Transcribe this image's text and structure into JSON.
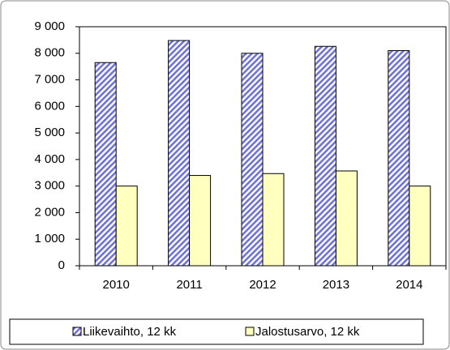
{
  "chart_data": {
    "type": "bar",
    "categories": [
      "2010",
      "2011",
      "2012",
      "2013",
      "2014"
    ],
    "series": [
      {
        "name": "Liikevaihto, 12 kk",
        "color": "#6f73d8",
        "values": [
          7650,
          8480,
          8000,
          8260,
          8100
        ]
      },
      {
        "name": "Jalostusarvo, 12 kk",
        "color": "#ffffc0",
        "values": [
          3000,
          3400,
          3470,
          3570,
          3000
        ]
      }
    ],
    "ylim": [
      0,
      9000
    ],
    "yticks": [
      0,
      {
        "value": 1000,
        "label": "1 000"
      },
      {
        "value": 2000,
        "label": "2 000"
      },
      {
        "value": 3000,
        "label": "3 000"
      },
      {
        "value": 4000,
        "label": "4 000"
      },
      {
        "value": 5000,
        "label": "5 000"
      },
      {
        "value": 6000,
        "label": "6 000"
      },
      {
        "value": 7000,
        "label": "7 000"
      },
      {
        "value": 8000,
        "label": "8 000"
      },
      {
        "value": 9000,
        "label": "9 000"
      }
    ],
    "grid": false,
    "legend": "bottom"
  }
}
